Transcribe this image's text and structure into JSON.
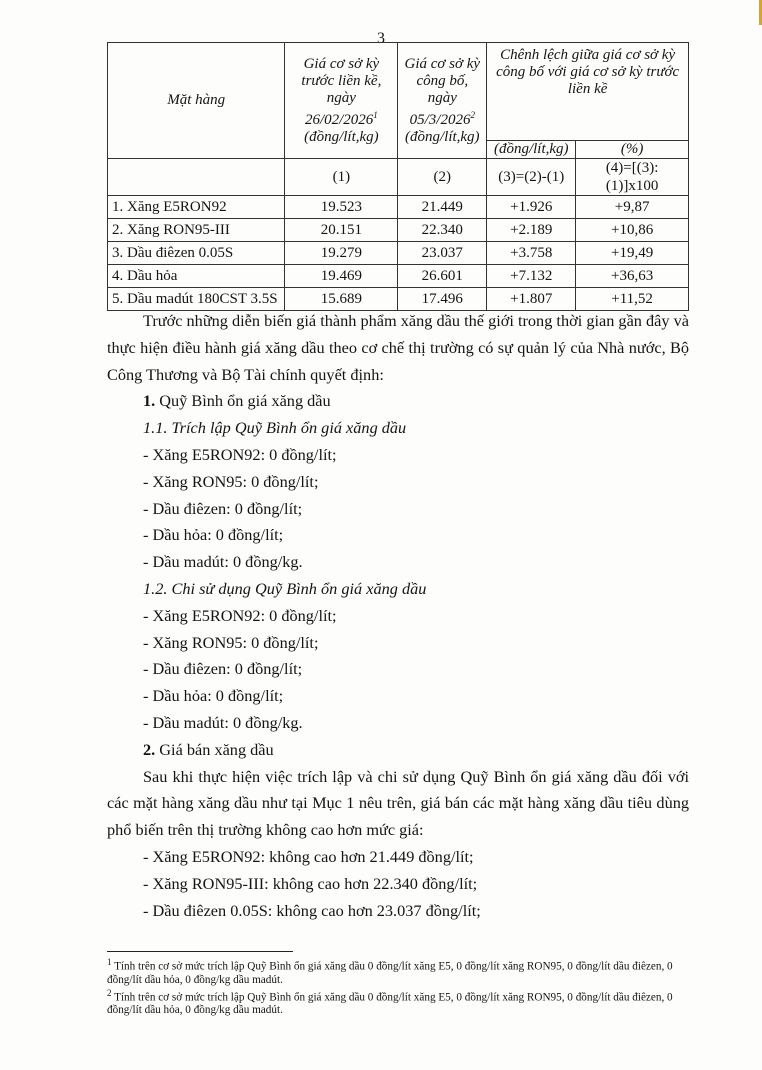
{
  "page_number": "3",
  "table": {
    "headers": {
      "item": "Mặt hàng",
      "prev_price": "Giá cơ sở kỳ trước liền kề, ngày 26/02/2026",
      "prev_price_note": "1",
      "prev_price_unit": "(đồng/lít,kg)",
      "curr_price": "Giá cơ sở kỳ công bố, ngày 05/3/2026",
      "curr_price_note": "2",
      "curr_price_unit": "(đồng/lít,kg)",
      "diff": "Chênh lệch giữa giá cơ sở kỳ công bố với giá cơ sở kỳ trước liền kề",
      "diff_abs_unit": "(đồng/lít,kg)",
      "diff_pct_unit": "(%)"
    },
    "formulas": [
      "(1)",
      "(2)",
      "(3)=(2)-(1)",
      "(4)=[(3):(1)]x100"
    ],
    "rows": [
      {
        "item": "1. Xăng E5RON92",
        "prev": "19.523",
        "curr": "21.449",
        "diff": "+1.926",
        "pct": "+9,87"
      },
      {
        "item": "2. Xăng RON95-III",
        "prev": "20.151",
        "curr": "22.340",
        "diff": "+2.189",
        "pct": "+10,86"
      },
      {
        "item": "3. Dầu điêzen 0.05S",
        "prev": "19.279",
        "curr": "23.037",
        "diff": "+3.758",
        "pct": "+19,49"
      },
      {
        "item": "4. Dầu hỏa",
        "prev": "19.469",
        "curr": "26.601",
        "diff": "+7.132",
        "pct": "+36,63"
      },
      {
        "item": "5. Dầu madút 180CST 3.5S",
        "prev": "15.689",
        "curr": "17.496",
        "diff": "+1.807",
        "pct": "+11,52"
      }
    ]
  },
  "body": {
    "intro": "Trước những diễn biến giá thành phẩm xăng dầu thế giới trong thời gian gần đây và thực hiện điều hành giá xăng dầu theo cơ chế thị trường có sự quản lý của Nhà nước, Bộ Công Thương và Bộ Tài chính quyết định:",
    "s1_num": "1.",
    "s1_title": " Quỹ Bình ổn giá xăng dầu",
    "s11": "1.1. Trích lập Quỹ Bình ổn giá xăng dầu",
    "s11_items": [
      "- Xăng E5RON92: 0 đồng/lít;",
      "- Xăng RON95: 0 đồng/lít;",
      "- Dầu điêzen: 0 đồng/lít;",
      "- Dầu hỏa: 0 đồng/lít;",
      "- Dầu madút: 0 đồng/kg."
    ],
    "s12": "1.2. Chi sử dụng Quỹ Bình ổn giá xăng dầu",
    "s12_items": [
      "- Xăng E5RON92: 0 đồng/lít;",
      "- Xăng RON95: 0 đồng/lít;",
      "- Dầu điêzen: 0 đồng/lít;",
      "- Dầu hỏa: 0 đồng/lít;",
      "- Dầu madút: 0 đồng/kg."
    ],
    "s2_num": "2.",
    "s2_title": " Giá bán xăng dầu",
    "s2_intro": "Sau khi thực hiện việc trích lập và chi sử dụng Quỹ Bình ổn giá xăng dầu đối với các mặt hàng xăng dầu như tại Mục 1 nêu trên, giá bán các mặt hàng xăng dầu tiêu dùng phổ biến trên thị trường không cao hơn mức giá:",
    "s2_items": [
      "- Xăng E5RON92: không cao hơn 21.449 đồng/lít;",
      "- Xăng RON95-III: không cao hơn 22.340 đồng/lít;",
      "- Dầu điêzen 0.05S: không cao hơn 23.037 đồng/lít;"
    ]
  },
  "footnotes": [
    {
      "mark": "1",
      "text": " Tính trên cơ sở mức trích lập Quỹ Bình ổn giá xăng dầu 0 đồng/lít xăng E5, 0 đồng/lít xăng RON95, 0 đồng/lít dầu điêzen, 0 đồng/lít dầu hỏa, 0 đồng/kg dầu madút."
    },
    {
      "mark": "2",
      "text": " Tính trên cơ sở mức trích lập Quỹ Bình ổn giá xăng dầu 0 đồng/lít xăng E5, 0 đồng/lít xăng RON95, 0 đồng/lít dầu điêzen, 0 đồng/lít dầu hỏa, 0 đồng/kg dầu madút."
    }
  ]
}
